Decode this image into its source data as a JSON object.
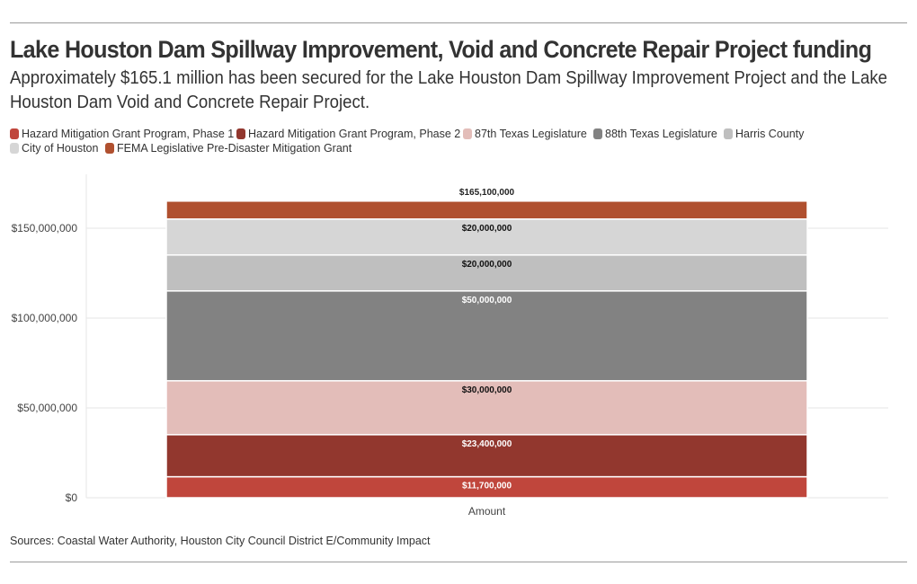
{
  "title": "Lake Houston Dam Spillway Improvement, Void and Concrete Repair Project funding",
  "subtitle": "Approximately $165.1 million has been secured for the Lake Houston Dam Spillway Improvement Project and the Lake Houston Dam Void and Concrete Repair Project.",
  "source": "Sources: Coastal Water Authority, Houston City Council District E/Community Impact",
  "chart_data": {
    "type": "bar",
    "stacked": true,
    "categories": [
      "Amount"
    ],
    "ylim": [
      0,
      180000000
    ],
    "yticks": [
      0,
      50000000,
      100000000,
      150000000
    ],
    "ytick_labels": [
      "$0",
      "$50,000,000",
      "$100,000,000",
      "$150,000,000"
    ],
    "total": 165100000,
    "total_label": "$165,100,000",
    "grid": true,
    "legend_position": "top-left",
    "series": [
      {
        "name": "Hazard Mitigation Grant Program, Phase 1",
        "values": [
          11700000
        ],
        "label": "$11,700,000",
        "color": "#c0463c",
        "label_color": "#ffffff"
      },
      {
        "name": "Hazard Mitigation Grant Program, Phase 2",
        "values": [
          23400000
        ],
        "label": "$23,400,000",
        "color": "#92372e",
        "label_color": "#ffffff"
      },
      {
        "name": "87th Texas Legislature",
        "values": [
          30000000
        ],
        "label": "$30,000,000",
        "color": "#e3bdb9",
        "label_color": "#111111"
      },
      {
        "name": "88th Texas Legislature",
        "values": [
          50000000
        ],
        "label": "$50,000,000",
        "color": "#828282",
        "label_color": "#ffffff"
      },
      {
        "name": "Harris County",
        "values": [
          20000000
        ],
        "label": "$20,000,000",
        "color": "#bfbfbf",
        "label_color": "#111111"
      },
      {
        "name": "City of Houston",
        "values": [
          20000000
        ],
        "label": "$20,000,000",
        "color": "#d6d6d6",
        "label_color": "#111111"
      },
      {
        "name": "FEMA Legislative Pre-Disaster Mitigation Grant",
        "values": [
          10000000
        ],
        "label": "",
        "color": "#b0502f",
        "label_color": "#ffffff"
      }
    ]
  }
}
